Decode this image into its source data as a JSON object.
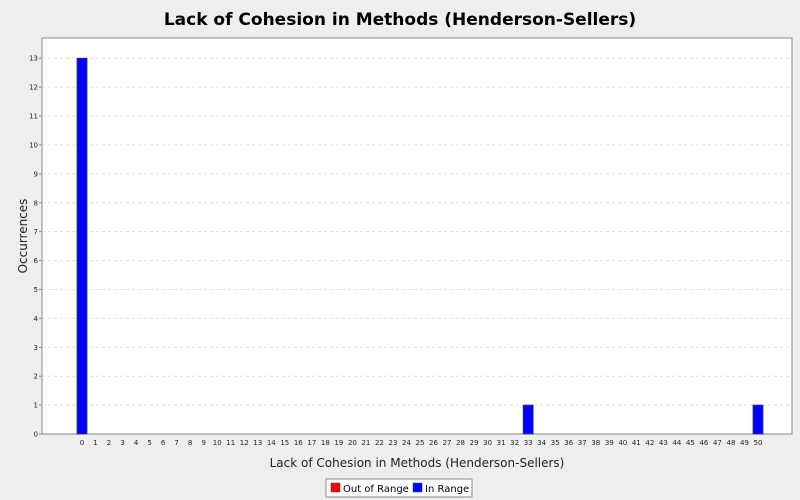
{
  "chart_data": {
    "type": "bar",
    "title": "Lack of Cohesion in Methods (Henderson-Sellers)",
    "xlabel": "Lack of Cohesion in Methods (Henderson-Sellers)",
    "ylabel": "Occurrences",
    "categories": [
      "0",
      "1",
      "2",
      "3",
      "4",
      "5",
      "6",
      "7",
      "8",
      "9",
      "10",
      "11",
      "12",
      "13",
      "14",
      "15",
      "16",
      "17",
      "18",
      "19",
      "20",
      "21",
      "22",
      "23",
      "24",
      "25",
      "26",
      "27",
      "28",
      "29",
      "30",
      "31",
      "32",
      "33",
      "34",
      "35",
      "36",
      "37",
      "38",
      "39",
      "40",
      "41",
      "42",
      "43",
      "44",
      "45",
      "46",
      "47",
      "48",
      "49",
      "50"
    ],
    "series": [
      {
        "name": "Out of Range",
        "color": "#ff0000",
        "values": [
          0,
          0,
          0,
          0,
          0,
          0,
          0,
          0,
          0,
          0,
          0,
          0,
          0,
          0,
          0,
          0,
          0,
          0,
          0,
          0,
          0,
          0,
          0,
          0,
          0,
          0,
          0,
          0,
          0,
          0,
          0,
          0,
          0,
          0,
          0,
          0,
          0,
          0,
          0,
          0,
          0,
          0,
          0,
          0,
          0,
          0,
          0,
          0,
          0,
          0,
          0
        ]
      },
      {
        "name": "In Range",
        "color": "#0000ff",
        "values": [
          13,
          0,
          0,
          0,
          0,
          0,
          0,
          0,
          0,
          0,
          0,
          0,
          0,
          0,
          0,
          0,
          0,
          0,
          0,
          0,
          0,
          0,
          0,
          0,
          0,
          0,
          0,
          0,
          0,
          0,
          0,
          0,
          0,
          1,
          0,
          0,
          0,
          0,
          0,
          0,
          0,
          0,
          0,
          0,
          0,
          0,
          0,
          0,
          0,
          0,
          1
        ]
      }
    ],
    "yticks": [
      0,
      1,
      2,
      3,
      4,
      5,
      6,
      7,
      8,
      9,
      10,
      11,
      12,
      13
    ],
    "ylim": [
      0,
      13.7
    ],
    "grid": true,
    "legend_position": "bottom-center"
  }
}
